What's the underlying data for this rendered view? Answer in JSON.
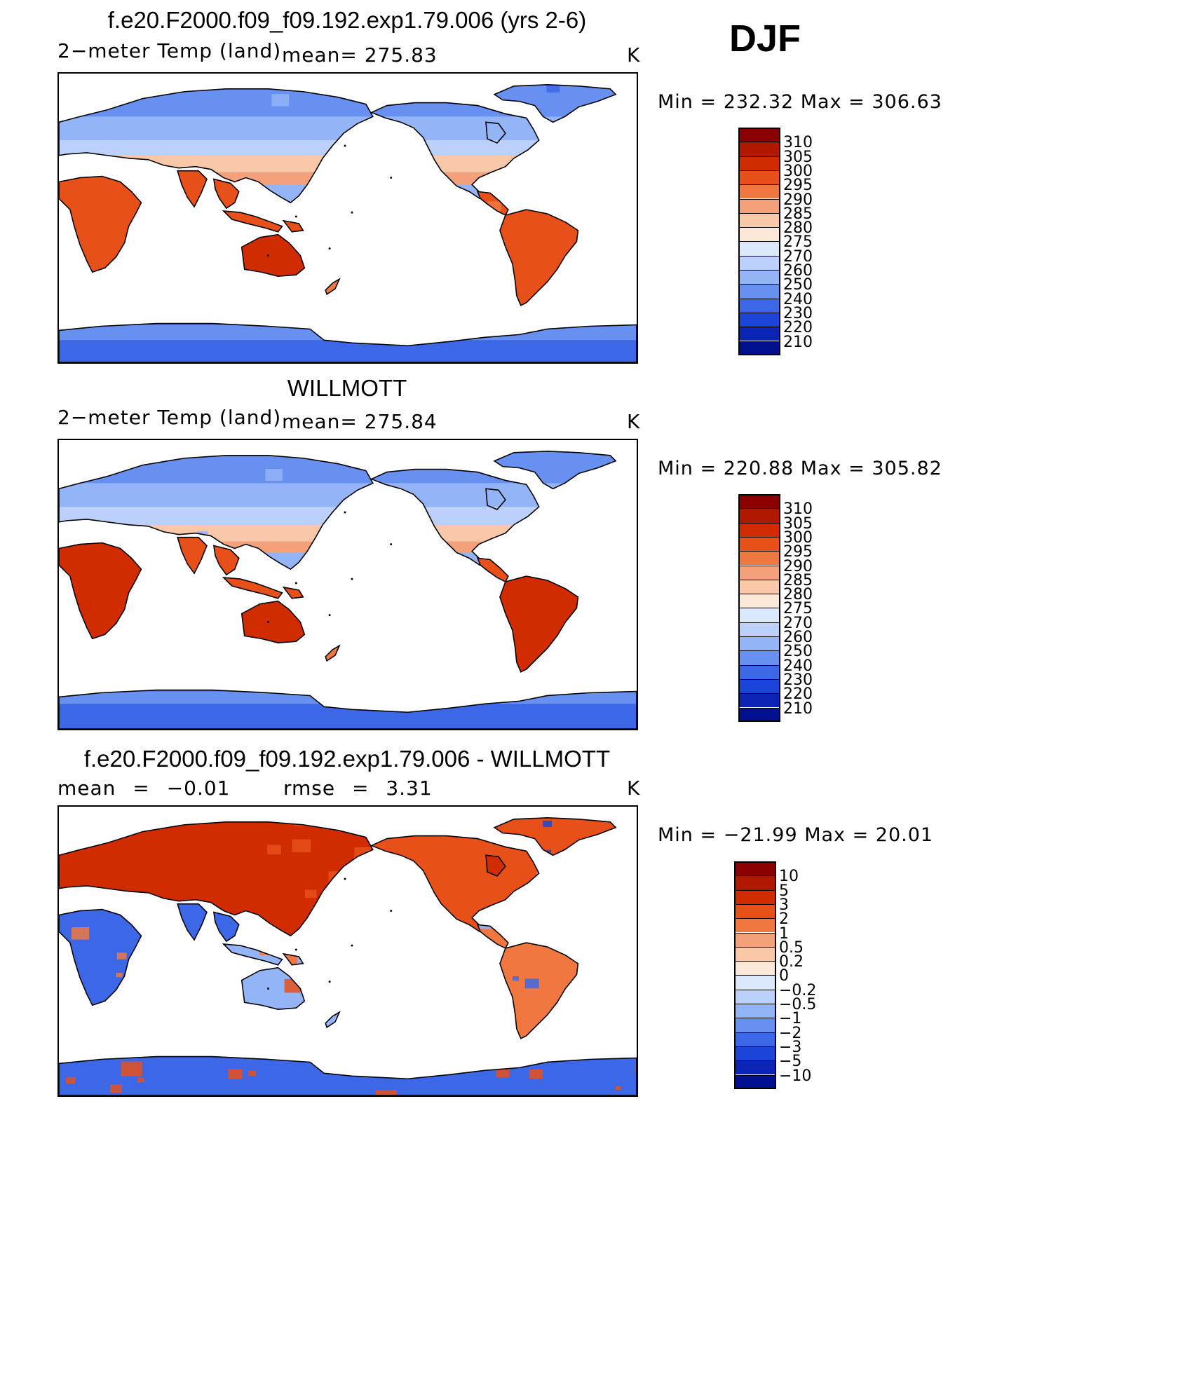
{
  "season": "DJF",
  "panels": [
    {
      "title": "f.e20.F2000.f09_f09.192.exp1.79.006 (yrs 2-6)",
      "left_label": "2−meter Temp (land)",
      "mid_label": "mean= 275.83",
      "units": "K",
      "minmax": "Min = 232.32 Max = 306.63",
      "kind": "model"
    },
    {
      "title": "WILLMOTT",
      "left_label": "2−meter Temp (land)",
      "mid_label": "mean= 275.84",
      "units": "K",
      "minmax": "Min = 220.88 Max = 305.82",
      "kind": "obs"
    },
    {
      "title": "f.e20.F2000.f09_f09.192.exp1.79.006 - WILLMOTT",
      "left_label": "mean = −0.01",
      "mid_label": "rmse = 3.31",
      "units": "K",
      "minmax": "Min = −21.99 Max = 20.01",
      "kind": "diff"
    }
  ],
  "colorbars": {
    "temp": {
      "labels": [
        "310",
        "305",
        "300",
        "295",
        "290",
        "285",
        "280",
        "275",
        "270",
        "260",
        "250",
        "240",
        "230",
        "220",
        "210"
      ],
      "colors": [
        "#8b0000",
        "#b01800",
        "#d02c00",
        "#e8501a",
        "#f07840",
        "#f4a07a",
        "#f8c8a8",
        "#fce8d8",
        "#dce8fc",
        "#bcd0fc",
        "#94b4f8",
        "#6890f0",
        "#3c68e8",
        "#1c44d8",
        "#0c24b4",
        "#001090"
      ]
    },
    "diff": {
      "labels": [
        "10",
        "5",
        "3",
        "2",
        "1",
        "0.5",
        "0.2",
        "0",
        "−0.2",
        "−0.5",
        "−1",
        "−2",
        "−3",
        "−5",
        "−10"
      ],
      "colors": [
        "#8b0000",
        "#b01800",
        "#d02c00",
        "#e8501a",
        "#f07840",
        "#f4a07a",
        "#f8c8a8",
        "#fce8d8",
        "#dce8fc",
        "#bcd0fc",
        "#94b4f8",
        "#6890f0",
        "#3c68e8",
        "#1c44d8",
        "#0c24b4",
        "#001090"
      ]
    }
  },
  "chart_data": {
    "type": "heatmap",
    "title": "DJF 2-meter Temp (land)",
    "projection": "global cylindrical equidistant, centered on Pacific",
    "panels": [
      {
        "name": "f.e20.F2000.f09_f09.192.exp1.79.006 (yrs 2-6)",
        "mean": 275.83,
        "min": 232.32,
        "max": 306.63,
        "units": "K"
      },
      {
        "name": "WILLMOTT",
        "mean": 275.84,
        "min": 220.88,
        "max": 305.82,
        "units": "K"
      },
      {
        "name": "f.e20.F2000.f09_f09.192.exp1.79.006 - WILLMOTT",
        "mean": -0.01,
        "rmse": 3.31,
        "min": -21.99,
        "max": 20.01,
        "units": "K"
      }
    ],
    "temp_levels": [
      210,
      220,
      230,
      240,
      250,
      260,
      270,
      275,
      280,
      285,
      290,
      295,
      300,
      305,
      310
    ],
    "diff_levels": [
      -10,
      -5,
      -3,
      -2,
      -1,
      -0.5,
      -0.2,
      0,
      0.2,
      0.5,
      1,
      2,
      3,
      5,
      10
    ]
  }
}
